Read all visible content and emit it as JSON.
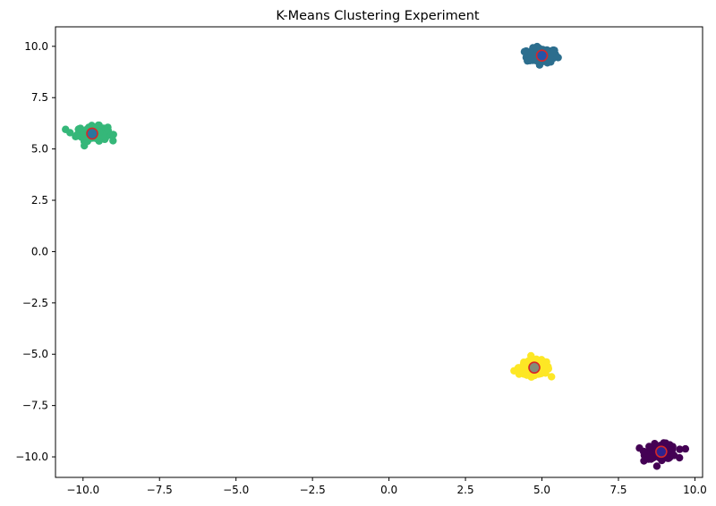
{
  "chart_data": {
    "type": "scatter",
    "title": "K-Means Clustering Experiment",
    "xlabel": "",
    "ylabel": "",
    "xlim": [
      -10.9,
      10.25
    ],
    "ylim": [
      -11.0,
      10.95
    ],
    "grid": false,
    "legend": "none",
    "xticks": [
      -10.0,
      -7.5,
      -5.0,
      -2.5,
      0.0,
      2.5,
      5.0,
      7.5,
      10.0
    ],
    "yticks": [
      10.0,
      7.5,
      5.0,
      2.5,
      0.0,
      -2.5,
      -5.0,
      -7.5,
      -10.0
    ],
    "xtick_labels": [
      "−10.0",
      "−7.5",
      "−5.0",
      "−2.5",
      "0.0",
      "2.5",
      "5.0",
      "7.5",
      "10.0"
    ],
    "ytick_labels": [
      "10.0",
      "7.5",
      "5.0",
      "2.5",
      "0.0",
      "−2.5",
      "−5.0",
      "−7.5",
      "−10.0"
    ],
    "clusters": [
      {
        "center": [
          5.0,
          9.55
        ],
        "spread": 0.25,
        "color": "#2c6e8e"
      },
      {
        "center": [
          -9.7,
          5.75
        ],
        "spread": 0.25,
        "color": "#35b779"
      },
      {
        "center": [
          4.75,
          -5.65
        ],
        "spread": 0.25,
        "color": "#fde725"
      },
      {
        "center": [
          8.9,
          -9.75
        ],
        "spread": 0.25,
        "color": "#440154"
      }
    ],
    "centroids": [
      {
        "x": 5.0,
        "y": 9.55
      },
      {
        "x": -9.7,
        "y": 5.75
      },
      {
        "x": 4.75,
        "y": -5.65
      },
      {
        "x": 8.9,
        "y": -9.75
      }
    ],
    "centroid_fill": "#1f3fbf",
    "centroid_edge": "#d62728"
  }
}
